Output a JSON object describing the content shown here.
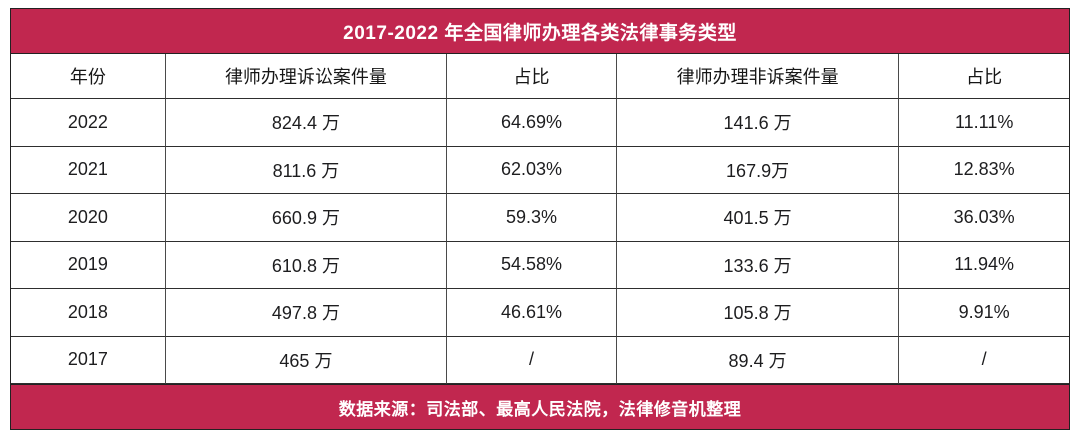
{
  "chart_data": {
    "type": "table",
    "title": "2017-2022 年全国律师办理各类法律事务类型",
    "columns": [
      "年份",
      "律师办理诉讼案件量",
      "占比",
      "律师办理非诉案件量",
      "占比"
    ],
    "rows": [
      [
        "2022",
        "824.4 万",
        "64.69%",
        "141.6 万",
        "11.11%"
      ],
      [
        "2021",
        "811.6 万",
        "62.03%",
        "167.9万",
        "12.83%"
      ],
      [
        "2020",
        "660.9 万",
        "59.3%",
        "401.5 万",
        "36.03%"
      ],
      [
        "2019",
        "610.8 万",
        "54.58%",
        "133.6 万",
        "11.94%"
      ],
      [
        "2018",
        "497.8 万",
        "46.61%",
        "105.8 万",
        "9.91%"
      ],
      [
        "2017",
        "465 万",
        "/",
        "89.4 万",
        "/"
      ]
    ],
    "categories": [
      "2022",
      "2021",
      "2020",
      "2019",
      "2018",
      "2017"
    ],
    "series": [
      {
        "name": "律师办理诉讼案件量(万)",
        "values": [
          824.4,
          811.6,
          660.9,
          610.8,
          497.8,
          465
        ]
      },
      {
        "name": "诉讼案件占比(%)",
        "values": [
          64.69,
          62.03,
          59.3,
          54.58,
          46.61,
          null
        ]
      },
      {
        "name": "律师办理非诉案件量(万)",
        "values": [
          141.6,
          167.9,
          401.5,
          133.6,
          105.8,
          89.4
        ]
      },
      {
        "name": "非诉案件占比(%)",
        "values": [
          11.11,
          12.83,
          36.03,
          11.94,
          9.91,
          null
        ]
      }
    ],
    "source_note": "数据来源：司法部、最高人民法院，法律修音机整理"
  },
  "colors": {
    "accent": "#C1274F",
    "title_text": "#FFFFFF",
    "body_text": "#1D1D1F",
    "grid_line": "#333333",
    "background": "#FFFFFF"
  }
}
